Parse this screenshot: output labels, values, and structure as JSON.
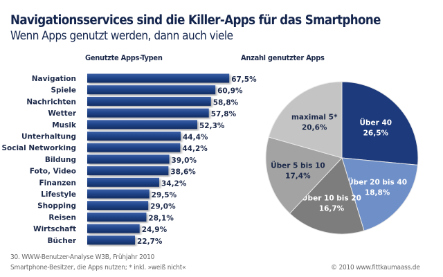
{
  "title": "Navigationsservices sind die Killer-Apps für das Smartphone",
  "subtitle": "Wenn Apps genutzt werden, dann auch viele",
  "footnote": {
    "line1": "30. WWW-Benutzer-Analyse W3B, Frühjahr 2010",
    "line2": "Smartphone-Besitzer, die Apps nutzen; * inkl. »weiß nicht«",
    "copyright": "© 2010 www.fittkaumaass.de"
  },
  "chart_data": [
    {
      "type": "bar",
      "orientation": "horizontal",
      "title": "Genutzte Apps-Typen",
      "categories": [
        "Navigation",
        "Spiele",
        "Nachrichten",
        "Wetter",
        "Musik",
        "Unterhaltung",
        "Social Networking",
        "Bildung",
        "Foto, Video",
        "Finanzen",
        "Lifestyle",
        "Shopping",
        "Reisen",
        "Wirtschaft",
        "Bücher"
      ],
      "values": [
        67.5,
        60.9,
        58.8,
        57.8,
        52.3,
        44.4,
        44.2,
        39.0,
        38.6,
        34.2,
        29.5,
        29.0,
        28.1,
        24.9,
        22.7
      ],
      "data_labels": [
        "67,5%",
        "60,9%",
        "58,8%",
        "57,8%",
        "52,3%",
        "44,4%",
        "44,2%",
        "39,0%",
        "38,6%",
        "34,2%",
        "29,5%",
        "29,0%",
        "28,1%",
        "24,9%",
        "22,7%"
      ],
      "unit": "%",
      "bar_color": "#1f4387",
      "grid": false
    },
    {
      "type": "pie",
      "title": "Anzahl genutzter Apps",
      "slices": [
        {
          "label": "Über 40",
          "value": 26.5,
          "value_label": "26,5%",
          "color": "#1c3a7c",
          "text_color": "#ffffff"
        },
        {
          "label": "Über 20 bis 40",
          "value": 18.8,
          "value_label": "18,8%",
          "color": "#6e8fc8",
          "text_color": "#ffffff"
        },
        {
          "label": "Über 10 bis 20",
          "value": 16.7,
          "value_label": "16,7%",
          "color": "#7d7d7d",
          "text_color": "#ffffff"
        },
        {
          "label": "Über 5 bis 10",
          "value": 17.4,
          "value_label": "17,4%",
          "color": "#a3a3a3",
          "text_color": "#1d2a4a"
        },
        {
          "label": "maximal 5*",
          "value": 20.6,
          "value_label": "20,6%",
          "color": "#c4c4c4",
          "text_color": "#1d2a4a"
        }
      ]
    }
  ]
}
